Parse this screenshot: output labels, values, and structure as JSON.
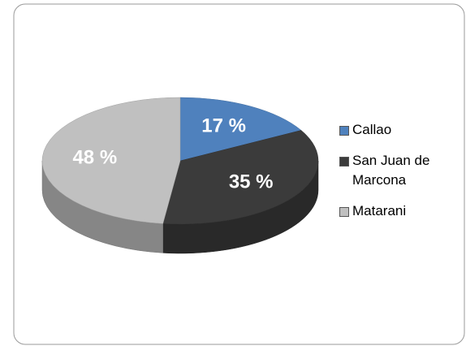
{
  "chart_data": {
    "type": "pie",
    "categories": [
      "Callao",
      "San Juan de Marcona",
      "Matarani"
    ],
    "values": [
      17,
      35,
      48
    ],
    "value_labels": [
      "17 %",
      "35 %",
      "48 %"
    ],
    "colors": [
      "#4f81bd",
      "#3b3b3b",
      "#c0c0c0"
    ],
    "legend": "right"
  }
}
